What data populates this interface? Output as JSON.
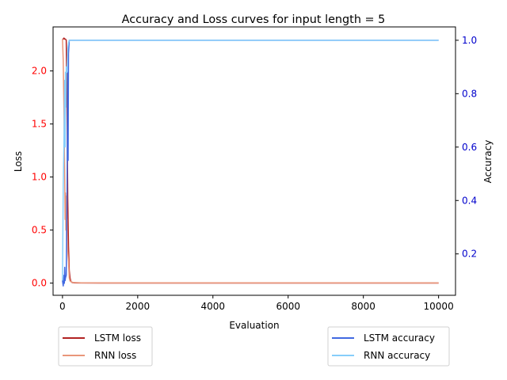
{
  "chart_data": {
    "type": "line",
    "title": "Accuracy and Loss curves for input length = 5",
    "xlabel": "Evaluation",
    "ylabel_left": "Loss",
    "ylabel_right": "Accuracy",
    "xlim": [
      -250,
      10450
    ],
    "ylim_left": [
      -0.115,
      2.415
    ],
    "ylim_right": [
      0.045,
      1.05
    ],
    "xticks": [
      0,
      2000,
      4000,
      6000,
      8000,
      10000
    ],
    "yticks_left": [
      0.0,
      0.5,
      1.0,
      1.5,
      2.0
    ],
    "yticks_right": [
      0.2,
      0.4,
      0.6,
      0.8,
      1.0
    ],
    "yticks_left_labels": [
      "0.0",
      "0.5",
      "1.0",
      "1.5",
      "2.0"
    ],
    "yticks_right_labels": [
      "0.2",
      "0.4",
      "0.6",
      "0.8",
      "1.0"
    ],
    "left_axis_color": "#ff0000",
    "right_axis_color": "#0000cc",
    "grid": false,
    "series": [
      {
        "name": "LSTM loss",
        "axis": "left",
        "color": "#b22222",
        "x": [
          0,
          20,
          40,
          60,
          80,
          100,
          120,
          140,
          160,
          180,
          200,
          220,
          240,
          260,
          300,
          400,
          1000,
          10000
        ],
        "y": [
          2.3,
          2.3,
          2.31,
          2.3,
          2.3,
          2.29,
          1.7,
          0.8,
          0.35,
          0.12,
          0.05,
          0.02,
          0.01,
          0.005,
          0.003,
          0.002,
          0.001,
          0.001
        ]
      },
      {
        "name": "RNN loss",
        "axis": "left",
        "color": "#e9967a",
        "x": [
          0,
          20,
          40,
          60,
          70,
          80,
          90,
          100,
          110,
          120,
          140,
          160,
          180,
          200,
          240,
          300,
          500,
          10000
        ],
        "y": [
          2.3,
          2.1,
          1.6,
          1.0,
          0.6,
          0.85,
          0.5,
          0.82,
          0.4,
          0.6,
          0.3,
          0.2,
          0.05,
          0.02,
          0.01,
          0.005,
          0.003,
          0.002
        ]
      },
      {
        "name": "LSTM accuracy",
        "axis": "right",
        "color": "#4169e1",
        "x": [
          0,
          20,
          40,
          50,
          60,
          70,
          80,
          100,
          120,
          140,
          150,
          160,
          180,
          200,
          10000
        ],
        "y": [
          0.1,
          0.08,
          0.12,
          0.09,
          0.15,
          0.1,
          0.11,
          0.12,
          0.4,
          0.88,
          0.55,
          0.95,
          1.0,
          1.0,
          1.0
        ]
      },
      {
        "name": "RNN accuracy",
        "axis": "right",
        "color": "#87cefa",
        "x": [
          0,
          20,
          40,
          60,
          70,
          80,
          90,
          100,
          120,
          140,
          160,
          180,
          200,
          240,
          300,
          10000
        ],
        "y": [
          0.1,
          0.45,
          0.62,
          0.85,
          0.6,
          0.88,
          0.75,
          0.9,
          0.88,
          0.97,
          0.99,
          1.0,
          1.0,
          1.0,
          1.0,
          1.0
        ]
      }
    ],
    "legend_left": [
      "LSTM loss",
      "RNN loss"
    ],
    "legend_right": [
      "LSTM accuracy",
      "RNN accuracy"
    ],
    "legend_placement": "below plot, left and right"
  }
}
